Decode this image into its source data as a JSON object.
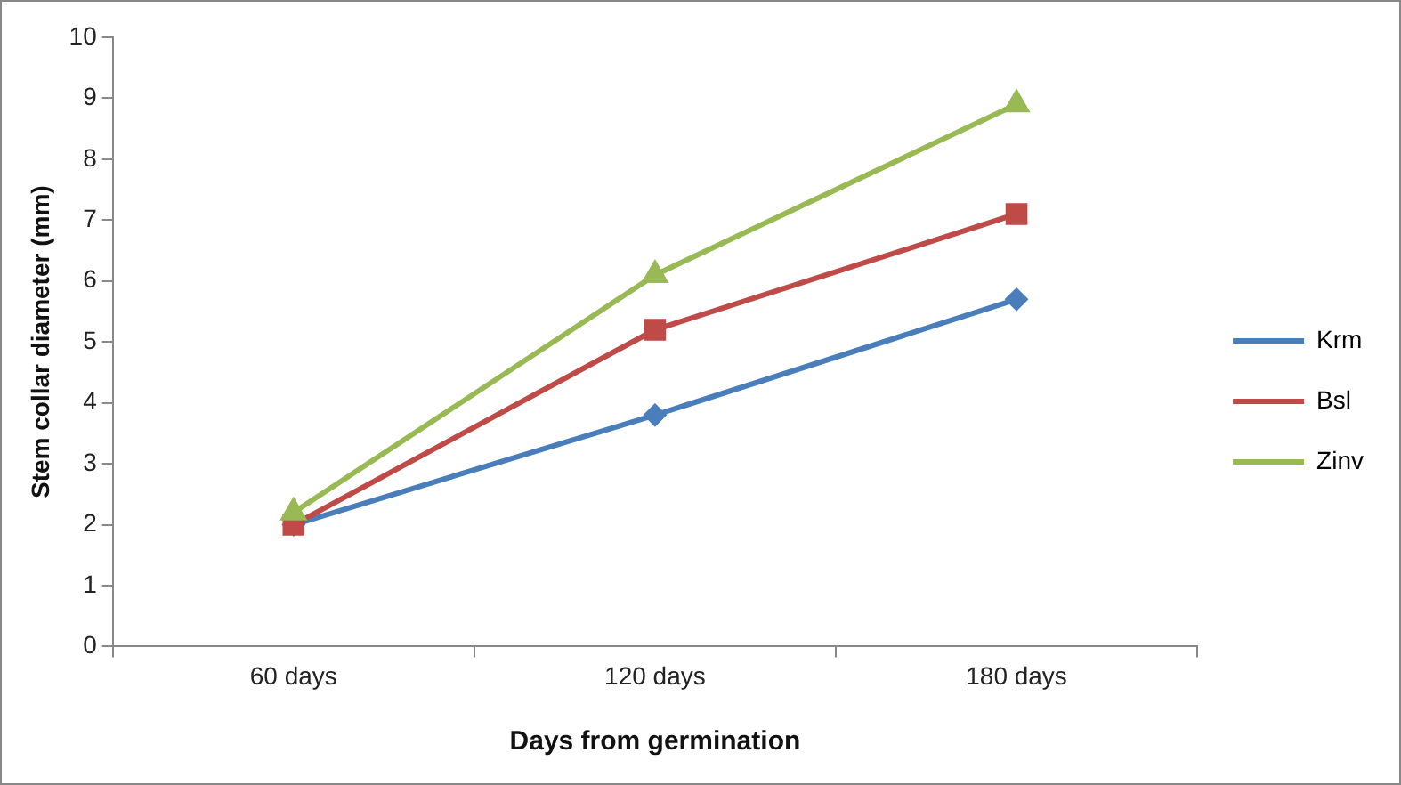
{
  "chart_data": {
    "type": "line",
    "xlabel": "Days from germination",
    "ylabel": "Stem collar diameter (mm)",
    "categories": [
      "60 days",
      "120 days",
      "180 days"
    ],
    "series": [
      {
        "name": "Krm",
        "color": "#4a7ebb",
        "marker": "diamond",
        "values": [
          2.0,
          3.8,
          5.7
        ]
      },
      {
        "name": "Bsl",
        "color": "#be4b48",
        "marker": "square",
        "values": [
          2.0,
          5.2,
          7.1
        ]
      },
      {
        "name": "Zinv",
        "color": "#98b954",
        "marker": "triangle",
        "values": [
          2.2,
          6.1,
          8.9
        ]
      }
    ],
    "ylim": [
      0,
      10
    ],
    "yticks": [
      0,
      1,
      2,
      3,
      4,
      5,
      6,
      7,
      8,
      9,
      10
    ],
    "grid": false,
    "legend": "right",
    "line_style": "solid"
  }
}
